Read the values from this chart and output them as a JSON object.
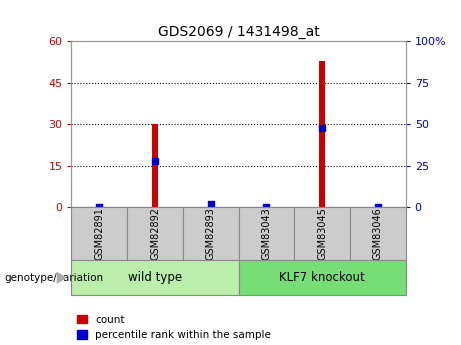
{
  "title": "GDS2069 / 1431498_at",
  "samples": [
    "GSM82891",
    "GSM82892",
    "GSM82893",
    "GSM83043",
    "GSM83045",
    "GSM83046"
  ],
  "counts": [
    0,
    30,
    0,
    0,
    53,
    0
  ],
  "percentile_ranks": [
    0,
    28,
    2,
    0,
    48,
    0
  ],
  "ylim_left": [
    0,
    60
  ],
  "ylim_right": [
    0,
    100
  ],
  "yticks_left": [
    0,
    15,
    30,
    45,
    60
  ],
  "yticks_right": [
    0,
    25,
    50,
    75,
    100
  ],
  "ytick_labels_left": [
    "0",
    "15",
    "30",
    "45",
    "60"
  ],
  "ytick_labels_right": [
    "0",
    "25",
    "50",
    "75",
    "100%"
  ],
  "bar_color": "#cc0000",
  "dot_color": "#0000cc",
  "wild_type_label": "wild type",
  "knockout_label": "KLF7 knockout",
  "wild_type_color": "#bbeeaa",
  "knockout_color": "#77dd77",
  "sample_box_color": "#cccccc",
  "legend_count_label": "count",
  "legend_percentile_label": "percentile rank within the sample",
  "genotype_label": "genotype/variation",
  "bar_width": 0.12
}
